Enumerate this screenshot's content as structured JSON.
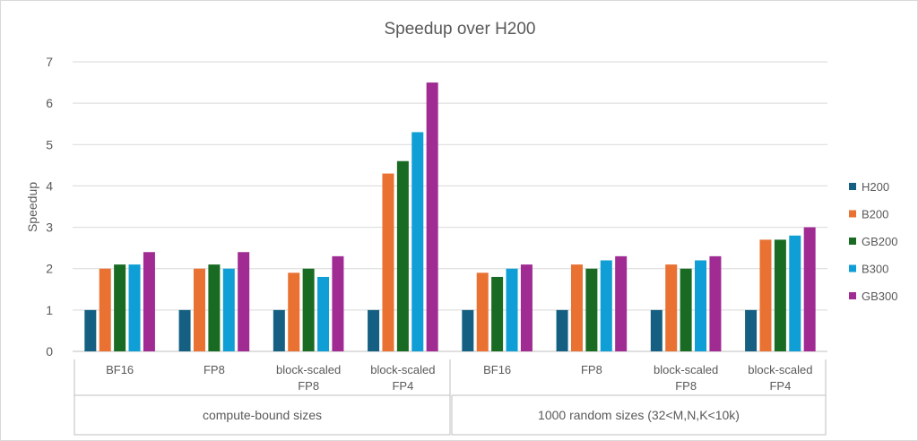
{
  "chart_data": {
    "type": "bar",
    "title": "Speedup over H200",
    "ylabel": "Speedup",
    "xlabel": "",
    "ylim": [
      0,
      7
    ],
    "yticks": [
      0,
      1,
      2,
      3,
      4,
      5,
      6,
      7
    ],
    "grid": true,
    "legend_position": "right",
    "categories": [
      "BF16",
      "FP8",
      "block-scaled FP8",
      "block-scaled FP4",
      "BF16",
      "FP8",
      "block-scaled FP8",
      "block-scaled FP4"
    ],
    "category_lines": [
      [
        "BF16"
      ],
      [
        "FP8"
      ],
      [
        "block-scaled",
        "FP8"
      ],
      [
        "block-scaled",
        "FP4"
      ],
      [
        "BF16"
      ],
      [
        "FP8"
      ],
      [
        "block-scaled",
        "FP8"
      ],
      [
        "block-scaled",
        "FP4"
      ]
    ],
    "groups": [
      {
        "label": "compute-bound sizes",
        "categories": 4
      },
      {
        "label": "1000 random sizes (32<M,N,K<10k)",
        "categories": 4
      }
    ],
    "series": [
      {
        "name": "H200",
        "color": "#156082",
        "values": [
          1,
          1,
          1,
          1,
          1,
          1,
          1,
          1
        ]
      },
      {
        "name": "B200",
        "color": "#E97132",
        "values": [
          2,
          2,
          1.9,
          4.3,
          1.9,
          2.1,
          2.1,
          2.7
        ]
      },
      {
        "name": "GB200",
        "color": "#196B24",
        "values": [
          2.1,
          2.1,
          2,
          4.6,
          1.8,
          2,
          2,
          2.7
        ]
      },
      {
        "name": "B300",
        "color": "#0F9ED5",
        "values": [
          2.1,
          2,
          1.8,
          5.3,
          2,
          2.2,
          2.2,
          2.8
        ]
      },
      {
        "name": "GB300",
        "color": "#A02B93",
        "values": [
          2.4,
          2.4,
          2.3,
          6.5,
          2.1,
          2.3,
          2.3,
          3
        ]
      }
    ]
  }
}
